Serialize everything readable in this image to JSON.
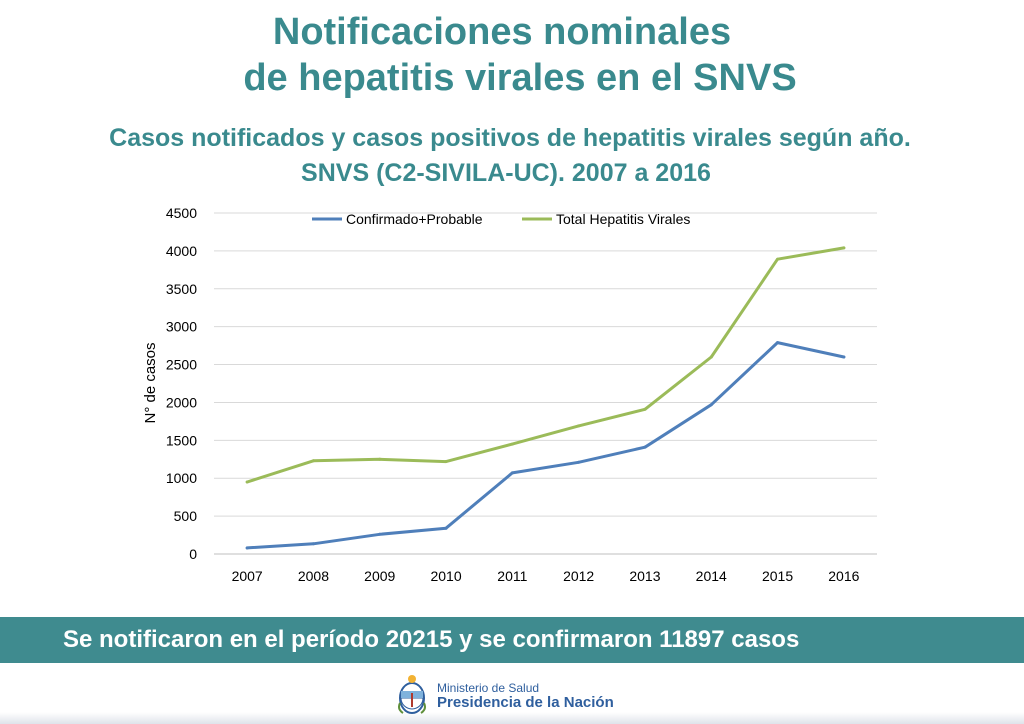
{
  "header": {
    "title_line1": "Notificaciones nominales",
    "title_line2": "de hepatitis virales en el SNVS",
    "subtitle_line1": "Casos notificados y casos positivos de hepatitis virales según año.",
    "subtitle_line2": "SNVS (C2-SIVILA-UC). 2007 a 2016"
  },
  "chart_data": {
    "type": "line",
    "x": [
      "2007",
      "2008",
      "2009",
      "2010",
      "2011",
      "2012",
      "2013",
      "2014",
      "2015",
      "2016"
    ],
    "ylabel": "N° de casos",
    "ylim": [
      0,
      4500
    ],
    "yticks": [
      0,
      500,
      1000,
      1500,
      2000,
      2500,
      3000,
      3500,
      4000,
      4500
    ],
    "grid": true,
    "legend_position": "top",
    "series": [
      {
        "name": "Confirmado+Probable",
        "color": "#4f7fba",
        "values": [
          80,
          135,
          260,
          340,
          1070,
          1210,
          1410,
          1970,
          2790,
          2600
        ]
      },
      {
        "name": "Total Hepatitis Virales",
        "color": "#9bbb59",
        "values": [
          950,
          1230,
          1250,
          1220,
          1450,
          1690,
          1910,
          2600,
          3890,
          4040
        ]
      }
    ]
  },
  "banner": {
    "text": "Se notificaron en el período  20215 y se confirmaron 11897 casos"
  },
  "footer": {
    "ministry": "Ministerio de Salud",
    "presidency": "Presidencia de la Nación",
    "logo_icon": "coat-of-arms-icon",
    "accent_color": "#3f8b8f",
    "logo_color": "#2f5f9e"
  }
}
